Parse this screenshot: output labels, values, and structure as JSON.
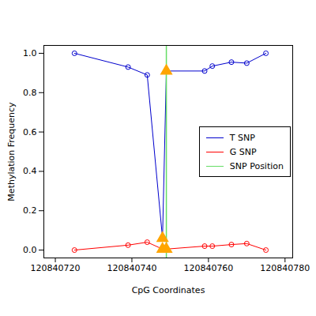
{
  "chart_data": {
    "type": "line",
    "x_label": "CpG Coordinates",
    "y_label": "Methylation Frequency",
    "x": [
      120840725,
      120840739,
      120840744,
      120840748,
      120840749,
      120840759,
      120840761,
      120840766,
      120840770,
      120840775
    ],
    "series": [
      {
        "name": "T SNP",
        "color": "#0000cd",
        "marker": "circle",
        "line_style": "solid",
        "values": [
          1.0,
          0.93,
          0.89,
          0.06,
          0.91,
          0.91,
          0.935,
          0.955,
          0.95,
          1.0
        ]
      },
      {
        "name": "G SNP",
        "color": "#ff0000",
        "marker": "circle",
        "line_style": "solid",
        "values": [
          0.0,
          0.025,
          0.04,
          0.005,
          0.005,
          0.02,
          0.02,
          0.028,
          0.033,
          0.0
        ]
      }
    ],
    "snp_position": {
      "name": "SNP Position",
      "color": "#66dd66",
      "x": 120840749
    },
    "highlight": {
      "color": "#ffa500",
      "marker": "triangle",
      "x": [
        120840748,
        120840749
      ]
    },
    "xlim": [
      120840717,
      120840782
    ],
    "xticks": [
      120840720,
      120840740,
      120840760,
      120840780
    ],
    "ylim": [
      -0.04,
      1.04
    ],
    "yticks": [
      {
        "value": 0,
        "label": "0.0"
      },
      0.2,
      0.4,
      0.6,
      0.8,
      {
        "value": 1,
        "label": "1.0"
      }
    ],
    "legend": "right",
    "grid": false
  }
}
